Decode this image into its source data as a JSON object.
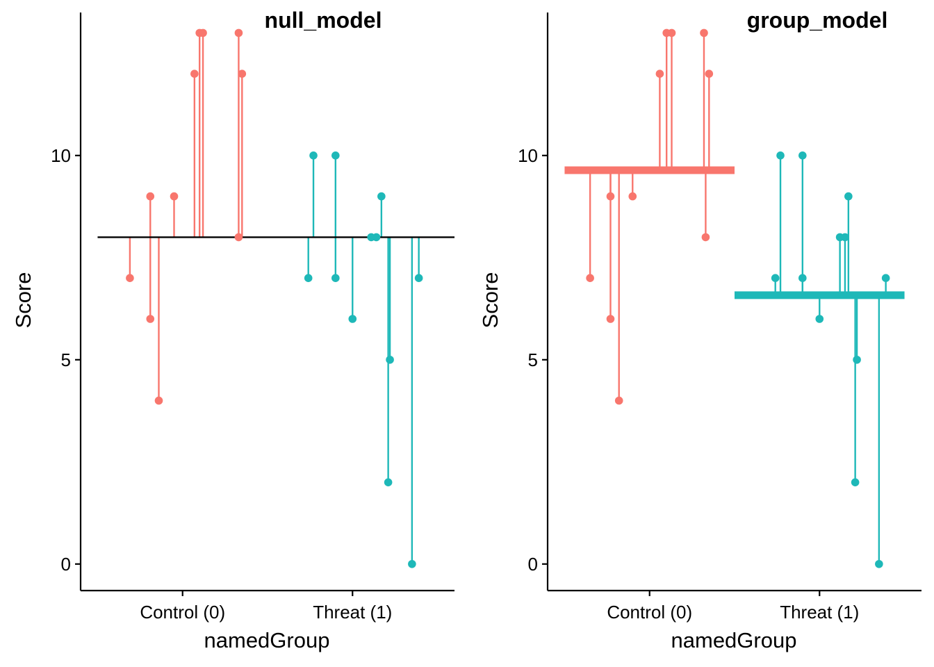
{
  "colors": {
    "control": "#F8766D",
    "threat": "#1EB8B8",
    "axis": "#000000"
  },
  "chart_data": [
    {
      "type": "scatter",
      "title": "null_model",
      "xlabel": "namedGroup",
      "ylabel": "Score",
      "categories": [
        "Control (0)",
        "Threat (1)"
      ],
      "y_ticks": [
        0,
        5,
        10
      ],
      "ylim": [
        -0.65,
        13.5
      ],
      "grid": false,
      "fit_lines": [
        {
          "group": "all",
          "value": 8.0,
          "x_range": [
            0.5,
            2.6
          ],
          "thickness": "thin"
        }
      ],
      "points": [
        {
          "group": "Control (0)",
          "x": 0.69,
          "y": 7
        },
        {
          "group": "Control (0)",
          "x": 0.81,
          "y": 9
        },
        {
          "group": "Control (0)",
          "x": 0.81,
          "y": 6
        },
        {
          "group": "Control (0)",
          "x": 0.86,
          "y": 4
        },
        {
          "group": "Control (0)",
          "x": 0.95,
          "y": 9
        },
        {
          "group": "Control (0)",
          "x": 1.07,
          "y": 12
        },
        {
          "group": "Control (0)",
          "x": 1.1,
          "y": 13
        },
        {
          "group": "Control (0)",
          "x": 1.12,
          "y": 13
        },
        {
          "group": "Control (0)",
          "x": 1.33,
          "y": 13
        },
        {
          "group": "Control (0)",
          "x": 1.33,
          "y": 8
        },
        {
          "group": "Control (0)",
          "x": 1.35,
          "y": 12
        },
        {
          "group": "Threat (1)",
          "x": 1.74,
          "y": 7
        },
        {
          "group": "Threat (1)",
          "x": 1.77,
          "y": 10
        },
        {
          "group": "Threat (1)",
          "x": 1.9,
          "y": 10
        },
        {
          "group": "Threat (1)",
          "x": 1.9,
          "y": 7
        },
        {
          "group": "Threat (1)",
          "x": 2.0,
          "y": 6
        },
        {
          "group": "Threat (1)",
          "x": 2.11,
          "y": 8
        },
        {
          "group": "Threat (1)",
          "x": 2.14,
          "y": 8
        },
        {
          "group": "Threat (1)",
          "x": 2.17,
          "y": 9
        },
        {
          "group": "Threat (1)",
          "x": 2.22,
          "y": 5
        },
        {
          "group": "Threat (1)",
          "x": 2.21,
          "y": 2
        },
        {
          "group": "Threat (1)",
          "x": 2.35,
          "y": 0
        },
        {
          "group": "Threat (1)",
          "x": 2.39,
          "y": 7
        }
      ]
    },
    {
      "type": "scatter",
      "title": "group_model",
      "xlabel": "namedGroup",
      "ylabel": "Score",
      "categories": [
        "Control (0)",
        "Threat (1)"
      ],
      "y_ticks": [
        0,
        5,
        10
      ],
      "ylim": [
        -0.65,
        13.5
      ],
      "grid": false,
      "fit_lines": [
        {
          "group": "Control (0)",
          "value": 9.64,
          "x_range": [
            0.5,
            1.5
          ],
          "thickness": "thick"
        },
        {
          "group": "Threat (1)",
          "value": 6.58,
          "x_range": [
            1.5,
            2.5
          ],
          "thickness": "thick"
        }
      ],
      "points": [
        {
          "group": "Control (0)",
          "x": 0.65,
          "y": 7
        },
        {
          "group": "Control (0)",
          "x": 0.77,
          "y": 9
        },
        {
          "group": "Control (0)",
          "x": 0.77,
          "y": 6
        },
        {
          "group": "Control (0)",
          "x": 0.82,
          "y": 4
        },
        {
          "group": "Control (0)",
          "x": 0.9,
          "y": 9
        },
        {
          "group": "Control (0)",
          "x": 1.06,
          "y": 12
        },
        {
          "group": "Control (0)",
          "x": 1.1,
          "y": 13
        },
        {
          "group": "Control (0)",
          "x": 1.13,
          "y": 13
        },
        {
          "group": "Control (0)",
          "x": 1.32,
          "y": 13
        },
        {
          "group": "Control (0)",
          "x": 1.33,
          "y": 8
        },
        {
          "group": "Control (0)",
          "x": 1.35,
          "y": 12
        },
        {
          "group": "Threat (1)",
          "x": 1.74,
          "y": 7
        },
        {
          "group": "Threat (1)",
          "x": 1.77,
          "y": 10
        },
        {
          "group": "Threat (1)",
          "x": 1.9,
          "y": 10
        },
        {
          "group": "Threat (1)",
          "x": 1.9,
          "y": 7
        },
        {
          "group": "Threat (1)",
          "x": 2.0,
          "y": 6
        },
        {
          "group": "Threat (1)",
          "x": 2.12,
          "y": 8
        },
        {
          "group": "Threat (1)",
          "x": 2.15,
          "y": 8
        },
        {
          "group": "Threat (1)",
          "x": 2.17,
          "y": 9
        },
        {
          "group": "Threat (1)",
          "x": 2.22,
          "y": 5
        },
        {
          "group": "Threat (1)",
          "x": 2.21,
          "y": 2
        },
        {
          "group": "Threat (1)",
          "x": 2.35,
          "y": 0
        },
        {
          "group": "Threat (1)",
          "x": 2.39,
          "y": 7
        }
      ]
    }
  ]
}
